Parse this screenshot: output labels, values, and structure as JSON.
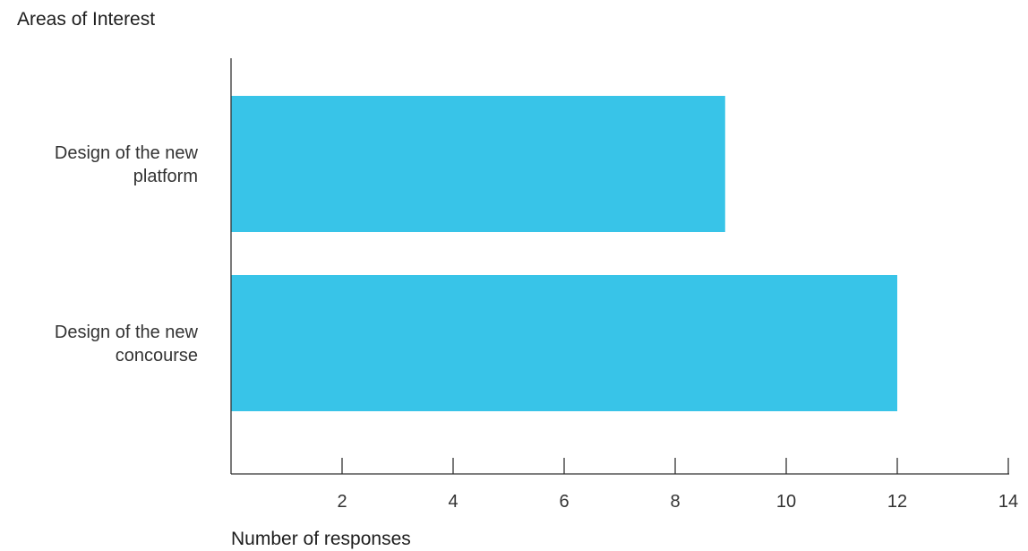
{
  "chart_data": {
    "type": "bar",
    "orientation": "horizontal",
    "title": "Areas of Interest",
    "xlabel": "Number of responses",
    "ylabel": "",
    "categories": [
      [
        "Design of the new",
        "platform"
      ],
      [
        "Design of the new",
        "concourse"
      ]
    ],
    "values": [
      8.9,
      12
    ],
    "xlim": [
      0,
      14
    ],
    "xticks": [
      2,
      4,
      6,
      8,
      10,
      12,
      14
    ],
    "grid": false,
    "legend": "none",
    "bar_color": "#38c4e8",
    "axis_color": "#333333"
  }
}
